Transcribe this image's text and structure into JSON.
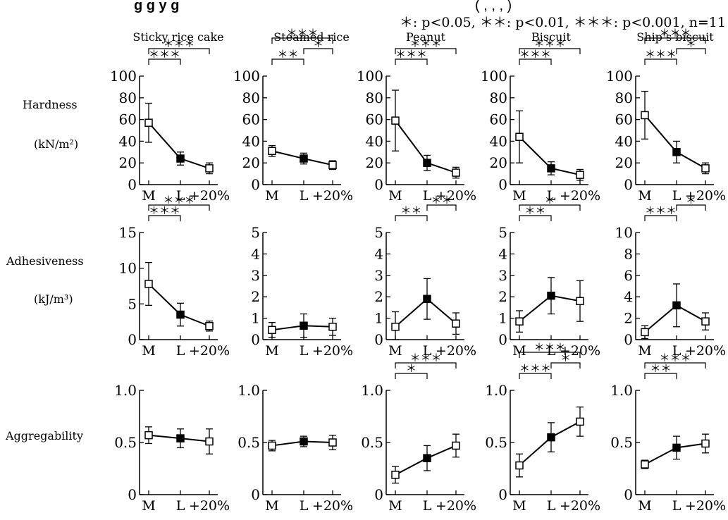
{
  "header": {
    "title_fragment": "g      g                                            y        g",
    "title_tail": "(                            ,       ,     ,   )",
    "significance_legend": "＊: p<0.05,  ＊＊: p<0.01,  ＊＊＊: p<0.001,  n=11"
  },
  "columns": [
    "Sticky rice cake",
    "Steamed rice",
    "Peanut",
    "Biscuit",
    "Ship’s biscuit"
  ],
  "rows": [
    {
      "label": "Hardness",
      "unit": "(kN/m²)"
    },
    {
      "label": "Adhesiveness",
      "unit": "(kJ/m³)"
    },
    {
      "label": "Aggregability",
      "unit": ""
    }
  ],
  "x_tick_labels": [
    "M",
    "L",
    "+20%"
  ],
  "chart_data": [
    {
      "type": "line",
      "row": "Hardness",
      "column": "Sticky rice cake",
      "categories": [
        "M",
        "L",
        "+20%"
      ],
      "ylim": [
        0,
        100
      ],
      "yticks": [
        "0",
        "20",
        "40",
        "60",
        "80",
        "100"
      ],
      "values": [
        57,
        24,
        15
      ],
      "errors": [
        18,
        6,
        5
      ],
      "markers": [
        "open",
        "filled",
        "open"
      ],
      "brackets": [
        {
          "from": 0,
          "to": 2,
          "label": "＊＊＊",
          "level": 2
        },
        {
          "from": 0,
          "to": 1,
          "label": "＊＊＊",
          "level": 1
        }
      ]
    },
    {
      "type": "line",
      "row": "Hardness",
      "column": "Steamed rice",
      "categories": [
        "M",
        "L",
        "+20%"
      ],
      "ylim": [
        0,
        100
      ],
      "yticks": [
        "0",
        "20",
        "40",
        "60",
        "80",
        "100"
      ],
      "values": [
        31,
        24,
        18
      ],
      "errors": [
        5,
        5,
        4
      ],
      "markers": [
        "open",
        "filled",
        "open"
      ],
      "brackets": [
        {
          "from": 0,
          "to": 2,
          "label": "＊＊＊",
          "level": 3
        },
        {
          "from": 1,
          "to": 2,
          "label": "＊",
          "level": 2
        },
        {
          "from": 0,
          "to": 1,
          "label": "＊＊",
          "level": 1
        }
      ]
    },
    {
      "type": "line",
      "row": "Hardness",
      "column": "Peanut",
      "categories": [
        "M",
        "L",
        "+20%"
      ],
      "ylim": [
        0,
        100
      ],
      "yticks": [
        "0",
        "20",
        "40",
        "60",
        "80",
        "100"
      ],
      "values": [
        59,
        20,
        11
      ],
      "errors": [
        28,
        7,
        5
      ],
      "markers": [
        "open",
        "filled",
        "open"
      ],
      "brackets": [
        {
          "from": 0,
          "to": 2,
          "label": "＊＊＊",
          "level": 2
        },
        {
          "from": 0,
          "to": 1,
          "label": "＊＊＊",
          "level": 1
        }
      ]
    },
    {
      "type": "line",
      "row": "Hardness",
      "column": "Biscuit",
      "categories": [
        "M",
        "L",
        "+20%"
      ],
      "ylim": [
        0,
        100
      ],
      "yticks": [
        "0",
        "20",
        "40",
        "60",
        "80",
        "100"
      ],
      "values": [
        44,
        15,
        9
      ],
      "errors": [
        24,
        6,
        5
      ],
      "markers": [
        "open",
        "filled",
        "open"
      ],
      "brackets": [
        {
          "from": 0,
          "to": 2,
          "label": "＊＊＊",
          "level": 2
        },
        {
          "from": 0,
          "to": 1,
          "label": "＊＊＊",
          "level": 1
        }
      ]
    },
    {
      "type": "line",
      "row": "Hardness",
      "column": "Ship’s biscuit",
      "categories": [
        "M",
        "L",
        "+20%"
      ],
      "ylim": [
        0,
        100
      ],
      "yticks": [
        "0",
        "20",
        "40",
        "60",
        "80",
        "100"
      ],
      "values": [
        64,
        30,
        15
      ],
      "errors": [
        22,
        10,
        5
      ],
      "markers": [
        "open",
        "filled",
        "open"
      ],
      "brackets": [
        {
          "from": 0,
          "to": 2,
          "label": "＊＊＊",
          "level": 3
        },
        {
          "from": 1,
          "to": 2,
          "label": "＊",
          "level": 2
        },
        {
          "from": 0,
          "to": 1,
          "label": "＊＊＊",
          "level": 1
        }
      ]
    },
    {
      "type": "line",
      "row": "Adhesiveness",
      "column": "Sticky rice cake",
      "categories": [
        "M",
        "L",
        "+20%"
      ],
      "ylim": [
        0,
        15
      ],
      "yticks": [
        "0",
        "5",
        "10",
        "15"
      ],
      "values": [
        7.8,
        3.5,
        1.9
      ],
      "errors": [
        3,
        1.6,
        0.7
      ],
      "markers": [
        "open",
        "filled",
        "open"
      ],
      "brackets": [
        {
          "from": 0,
          "to": 2,
          "label": "＊＊＊",
          "level": 2
        },
        {
          "from": 0,
          "to": 1,
          "label": "＊＊＊",
          "level": 1
        }
      ]
    },
    {
      "type": "line",
      "row": "Adhesiveness",
      "column": "Steamed rice",
      "categories": [
        "M",
        "L",
        "+20%"
      ],
      "ylim": [
        0,
        5
      ],
      "yticks": [
        "0",
        "1",
        "2",
        "3",
        "4",
        "5"
      ],
      "values": [
        0.45,
        0.65,
        0.6
      ],
      "errors": [
        0.35,
        0.55,
        0.4
      ],
      "markers": [
        "open",
        "filled",
        "open"
      ],
      "brackets": []
    },
    {
      "type": "line",
      "row": "Adhesiveness",
      "column": "Peanut",
      "categories": [
        "M",
        "L",
        "+20%"
      ],
      "ylim": [
        0,
        5
      ],
      "yticks": [
        "0",
        "1",
        "2",
        "3",
        "4",
        "5"
      ],
      "values": [
        0.6,
        1.9,
        0.75
      ],
      "errors": [
        0.7,
        0.95,
        0.5
      ],
      "markers": [
        "open",
        "filled",
        "open"
      ],
      "brackets": [
        {
          "from": 1,
          "to": 2,
          "label": "＊＊",
          "level": 2
        },
        {
          "from": 0,
          "to": 1,
          "label": "＊＊",
          "level": 1
        }
      ]
    },
    {
      "type": "line",
      "row": "Adhesiveness",
      "column": "Biscuit",
      "categories": [
        "M",
        "L",
        "+20%"
      ],
      "ylim": [
        0,
        5
      ],
      "yticks": [
        "0",
        "1",
        "2",
        "3",
        "4",
        "5"
      ],
      "values": [
        0.85,
        2.05,
        1.8
      ],
      "errors": [
        0.5,
        0.85,
        0.95
      ],
      "markers": [
        "open",
        "filled",
        "open"
      ],
      "brackets": [
        {
          "from": 0,
          "to": 2,
          "label": "＊",
          "level": 2
        },
        {
          "from": 0,
          "to": 1,
          "label": "＊＊",
          "level": 1
        }
      ]
    },
    {
      "type": "line",
      "row": "Adhesiveness",
      "column": "Ship’s biscuit",
      "categories": [
        "M",
        "L",
        "+20%"
      ],
      "ylim": [
        0,
        10
      ],
      "yticks": [
        "0",
        "2",
        "4",
        "6",
        "8",
        "10"
      ],
      "values": [
        0.7,
        3.2,
        1.7
      ],
      "errors": [
        0.6,
        2,
        0.8
      ],
      "markers": [
        "open",
        "filled",
        "open"
      ],
      "brackets": [
        {
          "from": 1,
          "to": 2,
          "label": "＊",
          "level": 2
        },
        {
          "from": 0,
          "to": 1,
          "label": "＊＊＊",
          "level": 1
        }
      ]
    },
    {
      "type": "line",
      "row": "Aggregability",
      "column": "Sticky rice cake",
      "categories": [
        "M",
        "L",
        "+20%"
      ],
      "ylim": [
        0,
        1
      ],
      "yticks": [
        "0",
        "0.5",
        "1.0"
      ],
      "values": [
        0.57,
        0.54,
        0.51
      ],
      "errors": [
        0.08,
        0.09,
        0.12
      ],
      "markers": [
        "open",
        "filled",
        "open"
      ],
      "brackets": []
    },
    {
      "type": "line",
      "row": "Aggregability",
      "column": "Steamed rice",
      "categories": [
        "M",
        "L",
        "+20%"
      ],
      "ylim": [
        0,
        1
      ],
      "yticks": [
        "0",
        "0.5",
        "1.0"
      ],
      "values": [
        0.47,
        0.51,
        0.5
      ],
      "errors": [
        0.05,
        0.05,
        0.07
      ],
      "markers": [
        "open",
        "filled",
        "open"
      ],
      "brackets": []
    },
    {
      "type": "line",
      "row": "Aggregability",
      "column": "Peanut",
      "categories": [
        "M",
        "L",
        "+20%"
      ],
      "ylim": [
        0,
        1
      ],
      "yticks": [
        "0",
        "0.5",
        "1.0"
      ],
      "values": [
        0.19,
        0.35,
        0.47
      ],
      "errors": [
        0.08,
        0.12,
        0.11
      ],
      "markers": [
        "open",
        "filled",
        "open"
      ],
      "brackets": [
        {
          "from": 0,
          "to": 2,
          "label": "＊＊＊",
          "level": 2
        },
        {
          "from": 0,
          "to": 1,
          "label": "＊",
          "level": 1
        }
      ]
    },
    {
      "type": "line",
      "row": "Aggregability",
      "column": "Biscuit",
      "categories": [
        "M",
        "L",
        "+20%"
      ],
      "ylim": [
        0,
        1
      ],
      "yticks": [
        "0",
        "0.5",
        "1.0"
      ],
      "values": [
        0.28,
        0.55,
        0.7
      ],
      "errors": [
        0.11,
        0.14,
        0.14
      ],
      "markers": [
        "open",
        "filled",
        "open"
      ],
      "brackets": [
        {
          "from": 0,
          "to": 2,
          "label": "＊＊＊",
          "level": 3
        },
        {
          "from": 1,
          "to": 2,
          "label": "＊",
          "level": 2
        },
        {
          "from": 0,
          "to": 1,
          "label": "＊＊＊",
          "level": 1
        }
      ]
    },
    {
      "type": "line",
      "row": "Aggregability",
      "column": "Ship’s biscuit",
      "categories": [
        "M",
        "L",
        "+20%"
      ],
      "ylim": [
        0,
        1
      ],
      "yticks": [
        "0",
        "0.5",
        "1.0"
      ],
      "values": [
        0.29,
        0.45,
        0.49
      ],
      "errors": [
        0.04,
        0.11,
        0.09
      ],
      "markers": [
        "open",
        "filled",
        "open"
      ],
      "brackets": [
        {
          "from": 0,
          "to": 2,
          "label": "＊＊＊",
          "level": 2
        },
        {
          "from": 0,
          "to": 1,
          "label": "＊＊",
          "level": 1
        }
      ]
    }
  ]
}
